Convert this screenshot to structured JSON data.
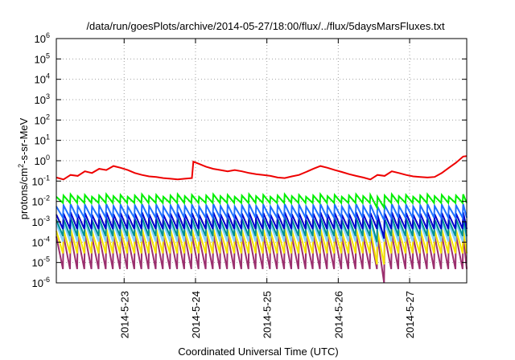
{
  "chart_data": {
    "type": "line",
    "title": "/data/run/goesPlots/archive/2014-05-27/18:00/flux/../flux/5daysMarsFluxes.txt",
    "xlabel": "Coordinated Universal Time (UTC)",
    "ylabel": {
      "pre": "protons/cm",
      "sup": "2",
      "post": "-s-sr-MeV"
    },
    "x_unit": "day of May 2014 (UTC)",
    "xlim": [
      22.05,
      27.8
    ],
    "ylim": [
      1e-06,
      1000000.0
    ],
    "y_scale": "log",
    "grid": true,
    "legend": "none",
    "x_ticks": [
      {
        "value": 23,
        "label": "2014-5-23"
      },
      {
        "value": 24,
        "label": "2014-5-24"
      },
      {
        "value": 25,
        "label": "2014-5-25"
      },
      {
        "value": 26,
        "label": "2014-5-26"
      },
      {
        "value": 27,
        "label": "2014-5-27"
      }
    ],
    "y_ticks": [
      {
        "value": 1e-06,
        "base": "10",
        "exp": "-6"
      },
      {
        "value": 1e-05,
        "base": "10",
        "exp": "-5"
      },
      {
        "value": 0.0001,
        "base": "10",
        "exp": "-4"
      },
      {
        "value": 0.001,
        "base": "10",
        "exp": "-3"
      },
      {
        "value": 0.01,
        "base": "10",
        "exp": "-2"
      },
      {
        "value": 0.1,
        "base": "10",
        "exp": "-1"
      },
      {
        "value": 1,
        "base": "10",
        "exp": "0"
      },
      {
        "value": 10,
        "base": "10",
        "exp": "1"
      },
      {
        "value": 100,
        "base": "10",
        "exp": "2"
      },
      {
        "value": 1000,
        "base": "10",
        "exp": "3"
      },
      {
        "value": 10000,
        "base": "10",
        "exp": "4"
      },
      {
        "value": 100000,
        "base": "10",
        "exp": "5"
      },
      {
        "value": 1000000,
        "base": "10",
        "exp": "6"
      }
    ],
    "sawtooth_period_days": 0.1,
    "series": [
      {
        "color": "#9b2f6e",
        "base": 3e-05,
        "amp": 1.6,
        "dip": {
          "at": 26.62,
          "value": 1e-06
        }
      },
      {
        "color": "#f5e600",
        "base": 0.0001,
        "amp": 1.1,
        "dip": {
          "at": 26.6,
          "value": 8e-06
        }
      },
      {
        "color": "#7fcfff",
        "base": 0.0003,
        "amp": 0.9,
        "dip": {
          "at": 26.55,
          "value": 6e-05
        }
      },
      {
        "color": "#009090",
        "base": 0.0005,
        "amp": 0.8,
        "dip": {
          "at": 26.55,
          "value": 0.0001
        }
      },
      {
        "color": "#0000cc",
        "base": 0.001,
        "amp": 0.7,
        "dip": {
          "at": 26.68,
          "value": 0.00015
        }
      },
      {
        "color": "#1f6fff",
        "base": 0.003,
        "amp": 0.55,
        "dip": {
          "at": 26.6,
          "value": 0.0012
        }
      },
      {
        "color": "#00ee00",
        "base": 0.012,
        "amp": 0.3,
        "dip": {
          "at": 26.6,
          "value": 0.005
        }
      },
      {
        "color": "#ee0000",
        "x": [
          22.05,
          22.15,
          22.25,
          22.35,
          22.45,
          22.55,
          22.65,
          22.75,
          22.85,
          22.95,
          23.05,
          23.15,
          23.25,
          23.35,
          23.45,
          23.55,
          23.65,
          23.75,
          23.85,
          23.95,
          23.97,
          24.05,
          24.15,
          24.25,
          24.35,
          24.45,
          24.55,
          24.65,
          24.75,
          24.85,
          24.95,
          25.05,
          25.15,
          25.25,
          25.35,
          25.45,
          25.55,
          25.65,
          25.75,
          25.85,
          25.95,
          26.05,
          26.15,
          26.25,
          26.35,
          26.45,
          26.55,
          26.65,
          26.75,
          26.85,
          26.95,
          27.05,
          27.15,
          27.25,
          27.35,
          27.45,
          27.55,
          27.65,
          27.75,
          27.8
        ],
        "y": [
          0.15,
          0.12,
          0.2,
          0.18,
          0.3,
          0.25,
          0.4,
          0.35,
          0.55,
          0.45,
          0.35,
          0.25,
          0.2,
          0.17,
          0.16,
          0.14,
          0.13,
          0.12,
          0.13,
          0.14,
          0.9,
          0.7,
          0.5,
          0.4,
          0.35,
          0.3,
          0.35,
          0.3,
          0.25,
          0.22,
          0.2,
          0.18,
          0.15,
          0.14,
          0.17,
          0.2,
          0.28,
          0.4,
          0.55,
          0.45,
          0.35,
          0.28,
          0.22,
          0.18,
          0.15,
          0.12,
          0.2,
          0.18,
          0.3,
          0.25,
          0.2,
          0.17,
          0.16,
          0.15,
          0.16,
          0.25,
          0.45,
          0.8,
          1.6,
          1.7
        ]
      }
    ]
  }
}
